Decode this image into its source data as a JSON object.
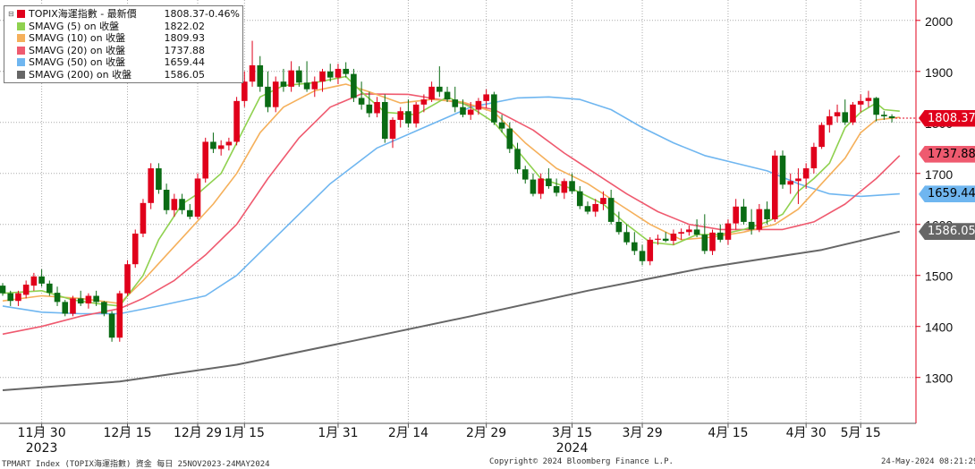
{
  "legend": {
    "items": [
      {
        "label": "TOPIX海運指數 - 最新價",
        "value": "1808.37",
        "change": "-0.46%",
        "color": "#e0001b"
      },
      {
        "label": "SMAVG (5)  on 收盤",
        "value": "1822.02",
        "change": "",
        "color": "#8fd14f"
      },
      {
        "label": "SMAVG (10)  on 收盤",
        "value": "1809.93",
        "change": "",
        "color": "#f5b05b"
      },
      {
        "label": "SMAVG (20)  on 收盤",
        "value": "1737.88",
        "change": "",
        "color": "#ef5a6f"
      },
      {
        "label": "SMAVG (50)  on 收盤",
        "value": "1659.44",
        "change": "",
        "color": "#6fb6f0"
      },
      {
        "label": "SMAVG (200)  on 收盤",
        "value": "1586.05",
        "change": "",
        "color": "#666666"
      }
    ]
  },
  "tags": [
    {
      "text": "1808.37",
      "value": 1808.37,
      "bg": "#e0001b",
      "fg": "#ffffff"
    },
    {
      "text": "1737.88",
      "value": 1737.88,
      "bg": "#ef5a6f",
      "fg": "#000000"
    },
    {
      "text": "1659.44",
      "value": 1659.44,
      "bg": "#6fb6f0",
      "fg": "#000000"
    },
    {
      "text": "1586.05",
      "value": 1586.05,
      "bg": "#666666",
      "fg": "#ffffff"
    }
  ],
  "footer": {
    "left": "TPMART Index (TOPIX海運指數) 資金  每日 25NOV2023-24MAY2024",
    "center": "Copyright© 2024 Bloomberg Finance L.P.",
    "right": "24-May-2024 08:21:29"
  },
  "chart_data": {
    "type": "candlestick",
    "ylim": [
      1210,
      2040
    ],
    "yticks": [
      1300,
      1400,
      1500,
      1600,
      1700,
      1800,
      1900,
      2000
    ],
    "grid": true,
    "axis_side": "right",
    "up_color": "#e0001b",
    "down_color": "#0a6b14",
    "x_labels": [
      {
        "index": 5,
        "day": "11月 30",
        "year": "2023"
      },
      {
        "index": 16,
        "day": "12月 15",
        "year": ""
      },
      {
        "index": 25,
        "day": "12月 29",
        "year": ""
      },
      {
        "index": 31,
        "day": "1月 15",
        "year": ""
      },
      {
        "index": 43,
        "day": "1月 31",
        "year": ""
      },
      {
        "index": 52,
        "day": "2月 14",
        "year": ""
      },
      {
        "index": 62,
        "day": "2月 29",
        "year": ""
      },
      {
        "index": 73,
        "day": "3月 15",
        "year": "2024"
      },
      {
        "index": 82,
        "day": "3月 29",
        "year": ""
      },
      {
        "index": 93,
        "day": "4月 15",
        "year": ""
      },
      {
        "index": 103,
        "day": "4月 30",
        "year": ""
      },
      {
        "index": 110,
        "day": "5月 15",
        "year": ""
      }
    ],
    "candles": [
      [
        1480,
        1485,
        1460,
        1465
      ],
      [
        1465,
        1470,
        1440,
        1450
      ],
      [
        1450,
        1470,
        1440,
        1465
      ],
      [
        1462,
        1490,
        1455,
        1482
      ],
      [
        1480,
        1505,
        1470,
        1498
      ],
      [
        1498,
        1512,
        1478,
        1484
      ],
      [
        1484,
        1490,
        1460,
        1466
      ],
      [
        1466,
        1478,
        1440,
        1448
      ],
      [
        1448,
        1452,
        1420,
        1425
      ],
      [
        1425,
        1460,
        1420,
        1455
      ],
      [
        1455,
        1470,
        1440,
        1445
      ],
      [
        1445,
        1465,
        1435,
        1460
      ],
      [
        1460,
        1470,
        1440,
        1448
      ],
      [
        1448,
        1450,
        1420,
        1425
      ],
      [
        1425,
        1430,
        1370,
        1378
      ],
      [
        1378,
        1470,
        1370,
        1465
      ],
      [
        1465,
        1530,
        1460,
        1522
      ],
      [
        1522,
        1590,
        1515,
        1582
      ],
      [
        1582,
        1650,
        1575,
        1642
      ],
      [
        1642,
        1720,
        1630,
        1710
      ],
      [
        1710,
        1720,
        1660,
        1668
      ],
      [
        1668,
        1680,
        1620,
        1628
      ],
      [
        1628,
        1660,
        1615,
        1650
      ],
      [
        1650,
        1660,
        1620,
        1628
      ],
      [
        1628,
        1640,
        1610,
        1615
      ],
      [
        1615,
        1700,
        1610,
        1690
      ],
      [
        1690,
        1770,
        1682,
        1762
      ],
      [
        1762,
        1780,
        1740,
        1748
      ],
      [
        1748,
        1765,
        1735,
        1755
      ],
      [
        1755,
        1770,
        1745,
        1762
      ],
      [
        1762,
        1850,
        1755,
        1842
      ],
      [
        1842,
        1900,
        1830,
        1880
      ],
      [
        1880,
        1960,
        1870,
        1912
      ],
      [
        1912,
        1930,
        1860,
        1870
      ],
      [
        1870,
        1900,
        1820,
        1830
      ],
      [
        1830,
        1890,
        1820,
        1880
      ],
      [
        1880,
        1905,
        1860,
        1870
      ],
      [
        1870,
        1920,
        1860,
        1902
      ],
      [
        1902,
        1910,
        1870,
        1878
      ],
      [
        1878,
        1920,
        1860,
        1865
      ],
      [
        1865,
        1890,
        1850,
        1880
      ],
      [
        1880,
        1905,
        1860,
        1900
      ],
      [
        1900,
        1915,
        1880,
        1888
      ],
      [
        1888,
        1915,
        1875,
        1905
      ],
      [
        1905,
        1918,
        1888,
        1895
      ],
      [
        1895,
        1905,
        1840,
        1848
      ],
      [
        1848,
        1880,
        1825,
        1835
      ],
      [
        1835,
        1860,
        1810,
        1818
      ],
      [
        1818,
        1850,
        1810,
        1840
      ],
      [
        1840,
        1855,
        1760,
        1768
      ],
      [
        1768,
        1810,
        1750,
        1805
      ],
      [
        1805,
        1830,
        1790,
        1822
      ],
      [
        1822,
        1845,
        1790,
        1798
      ],
      [
        1798,
        1840,
        1790,
        1835
      ],
      [
        1835,
        1855,
        1820,
        1845
      ],
      [
        1845,
        1880,
        1840,
        1870
      ],
      [
        1870,
        1910,
        1850,
        1860
      ],
      [
        1860,
        1870,
        1840,
        1845
      ],
      [
        1845,
        1870,
        1820,
        1830
      ],
      [
        1830,
        1845,
        1810,
        1815
      ],
      [
        1815,
        1840,
        1805,
        1825
      ],
      [
        1825,
        1848,
        1815,
        1842
      ],
      [
        1842,
        1865,
        1828,
        1855
      ],
      [
        1855,
        1860,
        1795,
        1800
      ],
      [
        1800,
        1815,
        1780,
        1788
      ],
      [
        1788,
        1800,
        1740,
        1748
      ],
      [
        1748,
        1760,
        1700,
        1708
      ],
      [
        1708,
        1715,
        1680,
        1688
      ],
      [
        1688,
        1700,
        1655,
        1660
      ],
      [
        1660,
        1700,
        1650,
        1690
      ],
      [
        1690,
        1710,
        1670,
        1675
      ],
      [
        1675,
        1690,
        1655,
        1662
      ],
      [
        1662,
        1690,
        1650,
        1685
      ],
      [
        1685,
        1700,
        1660,
        1665
      ],
      [
        1665,
        1675,
        1630,
        1636
      ],
      [
        1636,
        1645,
        1620,
        1625
      ],
      [
        1625,
        1650,
        1615,
        1640
      ],
      [
        1640,
        1665,
        1628,
        1652
      ],
      [
        1652,
        1668,
        1600,
        1605
      ],
      [
        1605,
        1625,
        1580,
        1585
      ],
      [
        1585,
        1600,
        1560,
        1565
      ],
      [
        1565,
        1585,
        1540,
        1548
      ],
      [
        1548,
        1560,
        1520,
        1528
      ],
      [
        1528,
        1575,
        1520,
        1570
      ],
      [
        1570,
        1580,
        1560,
        1572
      ],
      [
        1572,
        1585,
        1565,
        1568
      ],
      [
        1568,
        1590,
        1560,
        1582
      ],
      [
        1582,
        1592,
        1570,
        1585
      ],
      [
        1585,
        1598,
        1578,
        1590
      ],
      [
        1590,
        1610,
        1575,
        1580
      ],
      [
        1580,
        1620,
        1542,
        1548
      ],
      [
        1548,
        1590,
        1540,
        1584
      ],
      [
        1584,
        1600,
        1565,
        1570
      ],
      [
        1570,
        1610,
        1560,
        1602
      ],
      [
        1602,
        1650,
        1590,
        1635
      ],
      [
        1635,
        1650,
        1600,
        1605
      ],
      [
        1605,
        1630,
        1580,
        1590
      ],
      [
        1590,
        1640,
        1585,
        1630
      ],
      [
        1630,
        1645,
        1600,
        1610
      ],
      [
        1610,
        1745,
        1605,
        1735
      ],
      [
        1735,
        1745,
        1670,
        1678
      ],
      [
        1678,
        1700,
        1660,
        1685
      ],
      [
        1685,
        1710,
        1640,
        1690
      ],
      [
        1690,
        1720,
        1670,
        1710
      ],
      [
        1710,
        1760,
        1700,
        1752
      ],
      [
        1752,
        1800,
        1748,
        1795
      ],
      [
        1795,
        1825,
        1780,
        1812
      ],
      [
        1812,
        1835,
        1800,
        1820
      ],
      [
        1820,
        1845,
        1795,
        1800
      ],
      [
        1800,
        1840,
        1795,
        1835
      ],
      [
        1835,
        1855,
        1820,
        1842
      ],
      [
        1842,
        1862,
        1830,
        1848
      ],
      [
        1848,
        1850,
        1802,
        1815
      ],
      [
        1815,
        1822,
        1805,
        1812
      ],
      [
        1812,
        1816,
        1800,
        1808.37
      ]
    ],
    "sma": [
      {
        "name": "SMAVG (5)",
        "color": "#8fd14f",
        "points": [
          [
            0,
            1465
          ],
          [
            5,
            1470
          ],
          [
            9,
            1452
          ],
          [
            12,
            1445
          ],
          [
            15,
            1440
          ],
          [
            18,
            1500
          ],
          [
            20,
            1570
          ],
          [
            23,
            1640
          ],
          [
            25,
            1660
          ],
          [
            28,
            1700
          ],
          [
            31,
            1790
          ],
          [
            33,
            1850
          ],
          [
            36,
            1872
          ],
          [
            40,
            1878
          ],
          [
            44,
            1890
          ],
          [
            46,
            1860
          ],
          [
            49,
            1820
          ],
          [
            53,
            1815
          ],
          [
            57,
            1850
          ],
          [
            60,
            1830
          ],
          [
            63,
            1800
          ],
          [
            66,
            1745
          ],
          [
            69,
            1690
          ],
          [
            73,
            1670
          ],
          [
            77,
            1640
          ],
          [
            80,
            1600
          ],
          [
            83,
            1565
          ],
          [
            86,
            1560
          ],
          [
            89,
            1580
          ],
          [
            92,
            1580
          ],
          [
            95,
            1590
          ],
          [
            98,
            1605
          ],
          [
            100,
            1620
          ],
          [
            102,
            1665
          ],
          [
            104,
            1690
          ],
          [
            106,
            1720
          ],
          [
            108,
            1790
          ],
          [
            110,
            1820
          ],
          [
            112,
            1838
          ],
          [
            113,
            1825
          ],
          [
            115,
            1822
          ]
        ]
      },
      {
        "name": "SMAVG (10)",
        "color": "#f5b05b",
        "points": [
          [
            0,
            1450
          ],
          [
            5,
            1460
          ],
          [
            10,
            1455
          ],
          [
            15,
            1445
          ],
          [
            18,
            1490
          ],
          [
            21,
            1540
          ],
          [
            24,
            1590
          ],
          [
            27,
            1640
          ],
          [
            30,
            1700
          ],
          [
            33,
            1780
          ],
          [
            36,
            1830
          ],
          [
            40,
            1862
          ],
          [
            44,
            1875
          ],
          [
            47,
            1860
          ],
          [
            51,
            1838
          ],
          [
            55,
            1845
          ],
          [
            59,
            1840
          ],
          [
            63,
            1820
          ],
          [
            67,
            1760
          ],
          [
            71,
            1710
          ],
          [
            75,
            1680
          ],
          [
            79,
            1640
          ],
          [
            83,
            1600
          ],
          [
            87,
            1570
          ],
          [
            91,
            1575
          ],
          [
            95,
            1585
          ],
          [
            99,
            1600
          ],
          [
            102,
            1630
          ],
          [
            105,
            1680
          ],
          [
            108,
            1730
          ],
          [
            110,
            1780
          ],
          [
            112,
            1805
          ],
          [
            115,
            1810
          ]
        ]
      },
      {
        "name": "SMAVG (20)",
        "color": "#ef5a6f",
        "points": [
          [
            0,
            1385
          ],
          [
            5,
            1400
          ],
          [
            10,
            1420
          ],
          [
            15,
            1435
          ],
          [
            18,
            1455
          ],
          [
            22,
            1490
          ],
          [
            26,
            1540
          ],
          [
            30,
            1600
          ],
          [
            34,
            1690
          ],
          [
            38,
            1770
          ],
          [
            42,
            1830
          ],
          [
            46,
            1856
          ],
          [
            52,
            1855
          ],
          [
            58,
            1840
          ],
          [
            63,
            1825
          ],
          [
            68,
            1785
          ],
          [
            72,
            1740
          ],
          [
            76,
            1700
          ],
          [
            80,
            1660
          ],
          [
            84,
            1625
          ],
          [
            88,
            1600
          ],
          [
            92,
            1590
          ],
          [
            96,
            1590
          ],
          [
            100,
            1590
          ],
          [
            104,
            1605
          ],
          [
            108,
            1640
          ],
          [
            112,
            1690
          ],
          [
            115,
            1735
          ]
        ]
      },
      {
        "name": "SMAVG (50)",
        "color": "#6fb6f0",
        "points": [
          [
            0,
            1440
          ],
          [
            5,
            1428
          ],
          [
            10,
            1425
          ],
          [
            15,
            1425
          ],
          [
            20,
            1440
          ],
          [
            26,
            1460
          ],
          [
            30,
            1500
          ],
          [
            36,
            1590
          ],
          [
            42,
            1680
          ],
          [
            48,
            1750
          ],
          [
            54,
            1790
          ],
          [
            60,
            1830
          ],
          [
            66,
            1848
          ],
          [
            70,
            1850
          ],
          [
            74,
            1845
          ],
          [
            78,
            1825
          ],
          [
            82,
            1790
          ],
          [
            86,
            1760
          ],
          [
            90,
            1735
          ],
          [
            94,
            1720
          ],
          [
            98,
            1705
          ],
          [
            102,
            1680
          ],
          [
            106,
            1660
          ],
          [
            110,
            1655
          ],
          [
            115,
            1660
          ]
        ]
      },
      {
        "name": "SMAVG (200)",
        "color": "#666666",
        "points": [
          [
            0,
            1275
          ],
          [
            15,
            1292
          ],
          [
            30,
            1325
          ],
          [
            45,
            1372
          ],
          [
            60,
            1420
          ],
          [
            75,
            1470
          ],
          [
            90,
            1515
          ],
          [
            105,
            1550
          ],
          [
            115,
            1586
          ]
        ]
      }
    ]
  }
}
